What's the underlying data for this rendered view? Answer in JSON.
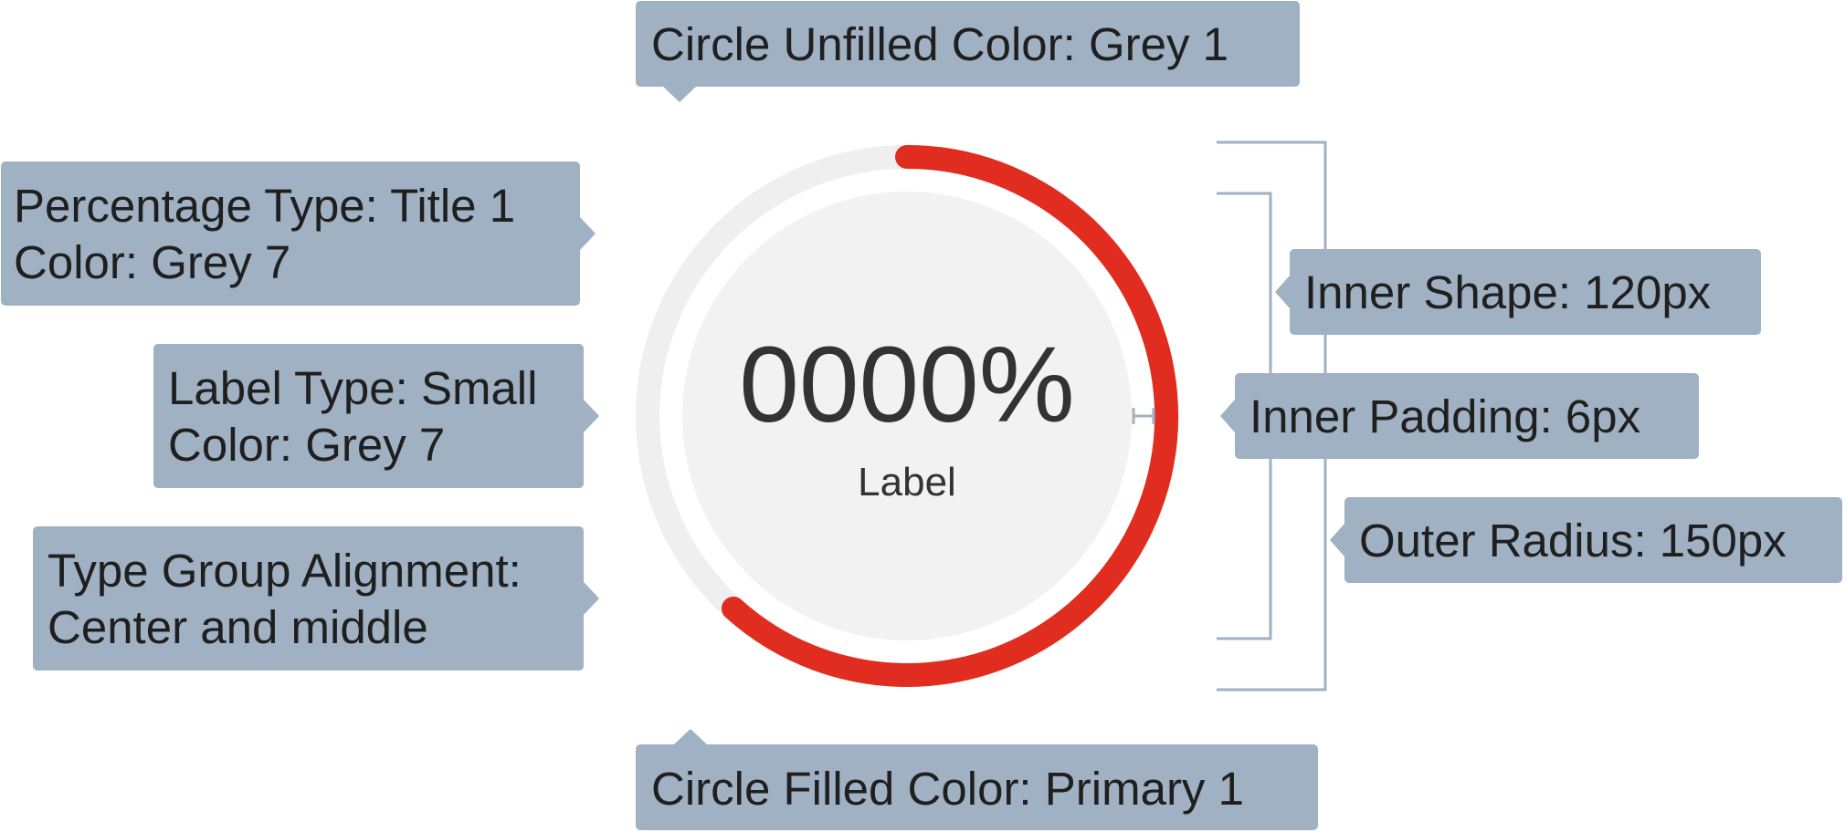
{
  "colors": {
    "callout_bg": "#9fb1c2",
    "bracket": "#9fb1c2",
    "track": "#efefef",
    "inner": "#f2f2f2",
    "progress": "#e02d1f",
    "text_dark": "#333333"
  },
  "gauge": {
    "percentage": "0000%",
    "label": "Label"
  },
  "callouts": {
    "unfilled_color": "Circle Unfilled Color: Grey 1",
    "percentage_type": [
      "Percentage Type: Title 1",
      "Color: Grey 7"
    ],
    "label_type": [
      "Label Type: Small",
      "Color: Grey 7"
    ],
    "alignment": [
      "Type Group Alignment:",
      "Center and middle"
    ],
    "inner_shape": "Inner Shape: 120px",
    "inner_padding": "Inner Padding: 6px",
    "outer_radius": "Outer Radius: 150px",
    "filled_color": "Circle Filled Color: Primary 1"
  }
}
